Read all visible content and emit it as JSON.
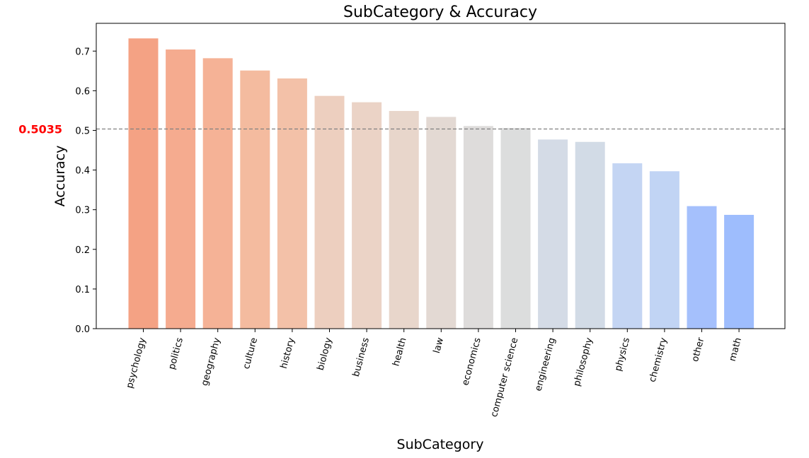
{
  "chart_data": {
    "type": "bar",
    "title": "SubCategory & Accuracy",
    "xlabel": "SubCategory",
    "ylabel": "Accuracy",
    "categories": [
      "psychology",
      "politics",
      "geography",
      "culture",
      "history",
      "biology",
      "business",
      "health",
      "law",
      "economics",
      "computer science",
      "engineering",
      "philosophy",
      "physics",
      "chemistry",
      "other",
      "math"
    ],
    "values": [
      0.732,
      0.704,
      0.682,
      0.651,
      0.631,
      0.587,
      0.571,
      0.549,
      0.534,
      0.511,
      0.506,
      0.477,
      0.471,
      0.417,
      0.397,
      0.309,
      0.287
    ],
    "colors": [
      "#f4a284",
      "#f5ab8f",
      "#f5b296",
      "#f4bb9f",
      "#f3c1a8",
      "#edcfbf",
      "#ebd3c6",
      "#e8d6cb",
      "#e3d9d3",
      "#dedcdb",
      "#dcdddd",
      "#d4dbe6",
      "#d2dbe6",
      "#c4d5f3",
      "#c1d4f4",
      "#a5c0fc",
      "#9ebdfd"
    ],
    "ylim": [
      0,
      0.77
    ],
    "yticks": [
      "0.0",
      "0.1",
      "0.2",
      "0.3",
      "0.4",
      "0.5",
      "0.6",
      "0.7"
    ],
    "reference_line": {
      "value": 0.5035,
      "label": "0.5035",
      "label_color": "#ff0000",
      "line_color": "#808080",
      "style": "dashed"
    },
    "grid": false,
    "legend": "none"
  }
}
